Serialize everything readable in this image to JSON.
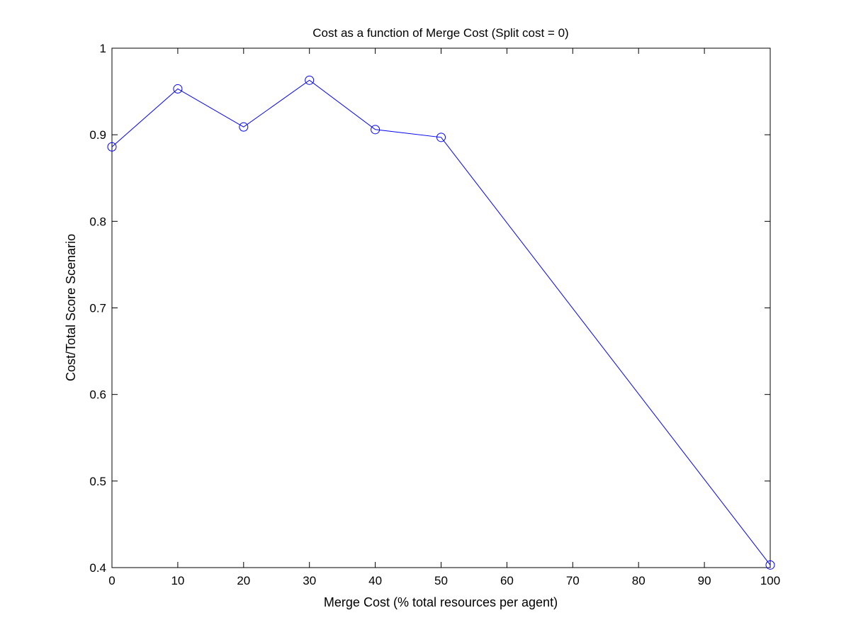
{
  "chart_data": {
    "type": "line",
    "title": "Cost as a function of Merge Cost (Split cost = 0)",
    "xlabel": "Merge Cost (% total resources per agent)",
    "ylabel": "Cost/Total Score Scenario",
    "xlim": [
      0,
      100
    ],
    "ylim": [
      0.4,
      1
    ],
    "xticks": [
      "0",
      "10",
      "20",
      "30",
      "40",
      "50",
      "60",
      "70",
      "80",
      "90",
      "100"
    ],
    "yticks": [
      "0.4",
      "0.5",
      "0.6",
      "0.7",
      "0.8",
      "0.9",
      "1"
    ],
    "grid": false,
    "legend": "none",
    "series": [
      {
        "x": [
          0,
          10,
          20,
          30,
          40,
          50,
          100
        ],
        "y": [
          0.886,
          0.953,
          0.909,
          0.963,
          0.906,
          0.897,
          0.403
        ],
        "color": "#0000ff",
        "marker": "circle"
      }
    ]
  }
}
